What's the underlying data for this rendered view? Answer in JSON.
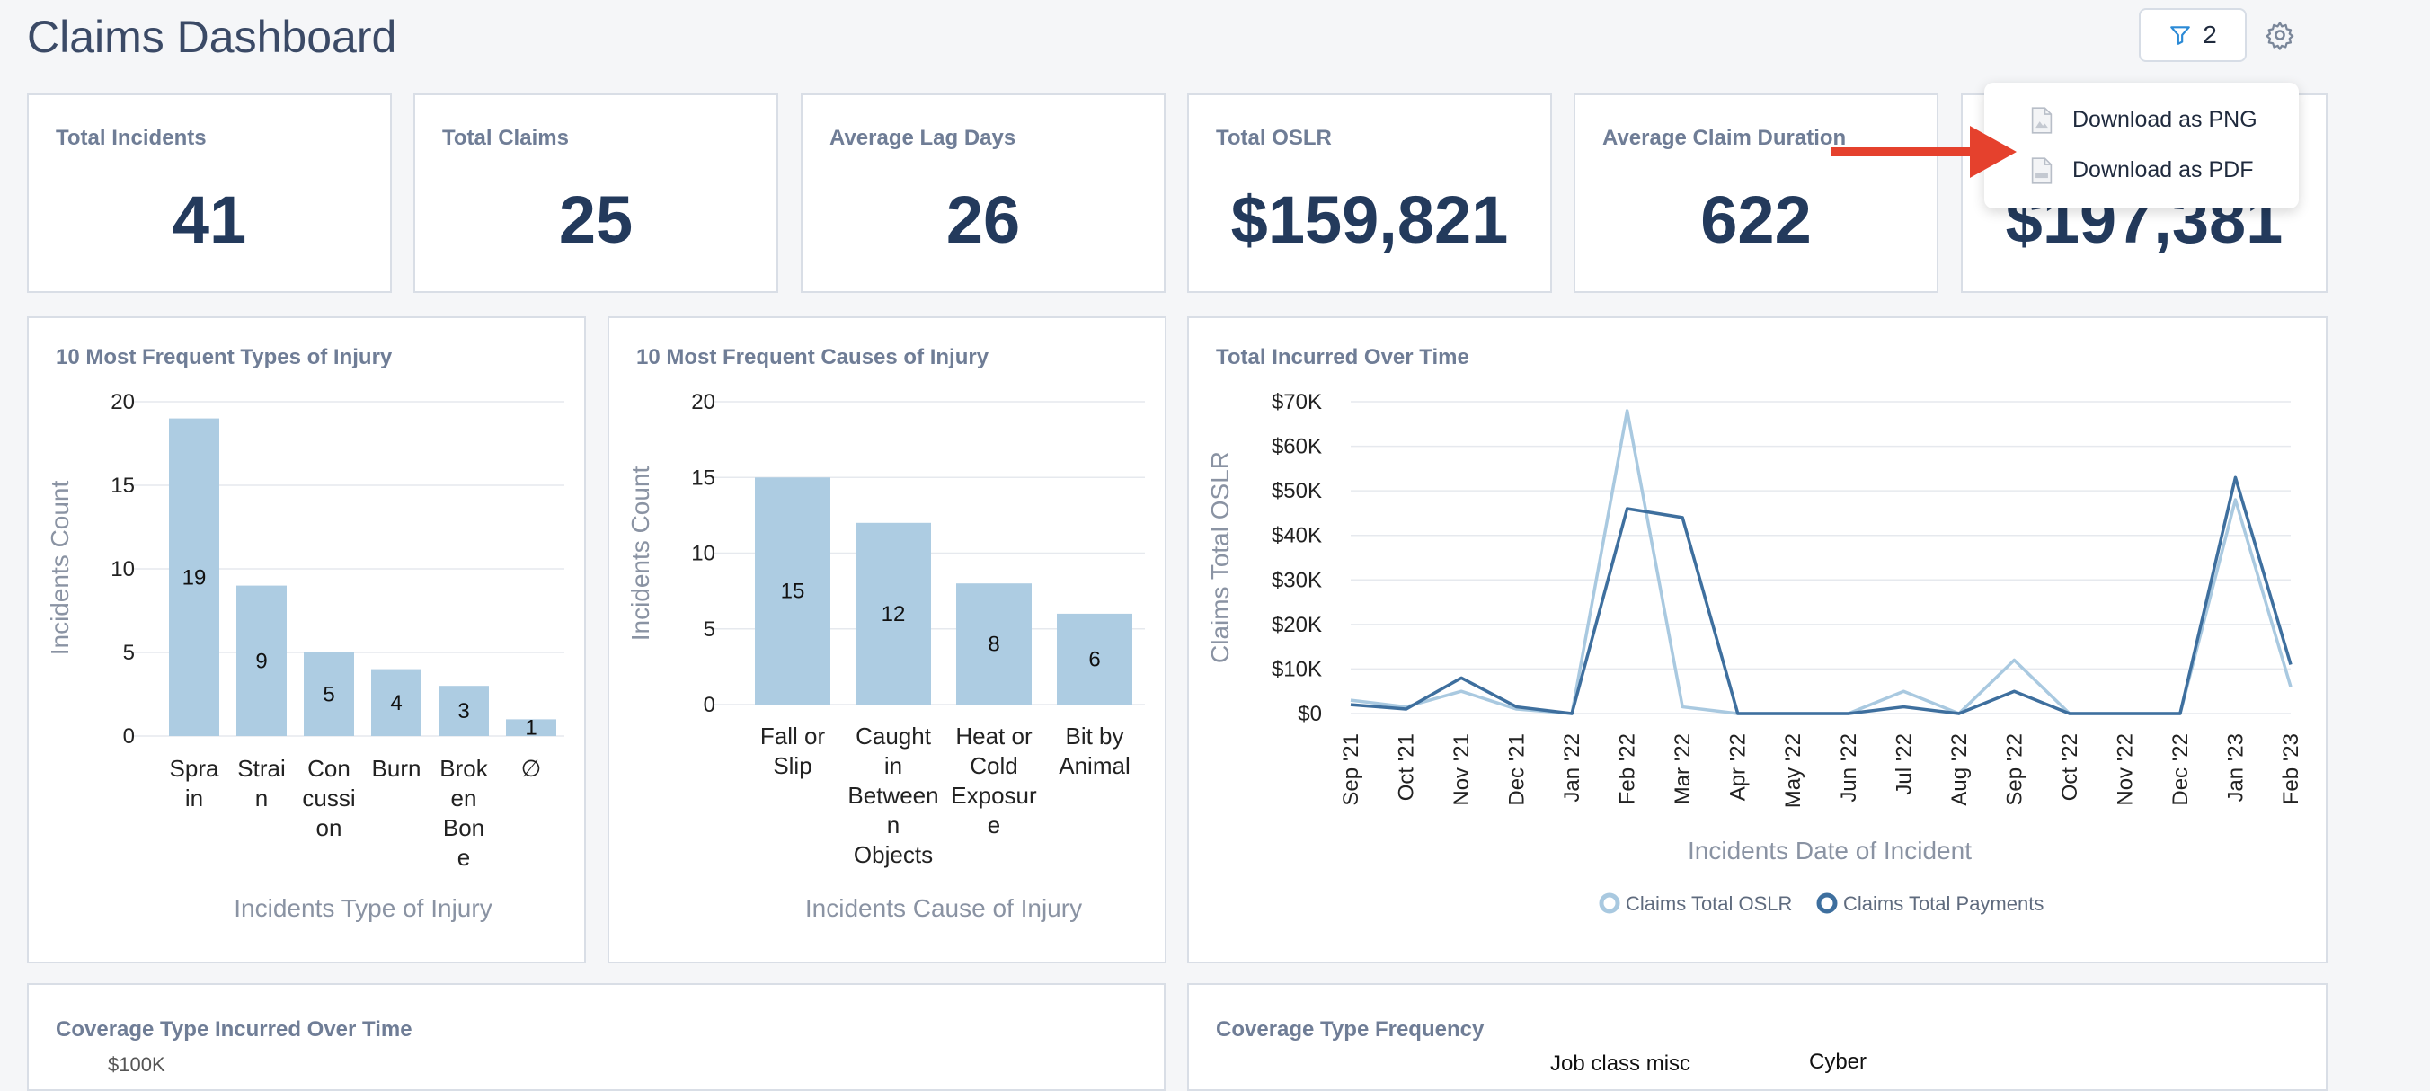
{
  "header": {
    "title": "Claims Dashboard",
    "filter_count": "2"
  },
  "kpis": [
    {
      "title": "Total Incidents",
      "value": "41"
    },
    {
      "title": "Total Claims",
      "value": "25"
    },
    {
      "title": "Average Lag Days",
      "value": "26"
    },
    {
      "title": "Total OSLR",
      "value": "$159,821"
    },
    {
      "title": "Average Claim Duration",
      "value": "622"
    },
    {
      "title": "",
      "value": "$197,381"
    }
  ],
  "download_menu": {
    "png_label": "Download as PNG",
    "pdf_label": "Download as PDF"
  },
  "colors": {
    "bar": "#adcce2",
    "oslr": "#a9c9e0",
    "payments": "#3e6f9e",
    "title": "#3b4a66",
    "arrow": "#e5412d"
  },
  "chart_data": [
    {
      "type": "bar",
      "title": "10 Most Frequent Types of Injury",
      "xlabel": "Incidents Type of Injury",
      "ylabel": "Incidents Count",
      "ylim": [
        0,
        20
      ],
      "yticks": [
        "0",
        "5",
        "10",
        "15",
        "20"
      ],
      "categories": [
        [
          "Spra",
          "in"
        ],
        [
          "Strai",
          "n"
        ],
        [
          "Con",
          "cussi",
          "on"
        ],
        [
          "Burn"
        ],
        [
          "Brok",
          "en",
          "Bon",
          "e"
        ],
        [
          "∅"
        ]
      ],
      "values": [
        19,
        9,
        5,
        4,
        3,
        1
      ]
    },
    {
      "type": "bar",
      "title": "10 Most Frequent Causes of Injury",
      "xlabel": "Incidents Cause of Injury",
      "ylabel": "Incidents Count",
      "ylim": [
        0,
        20
      ],
      "yticks": [
        "0",
        "5",
        "10",
        "15",
        "20"
      ],
      "categories": [
        [
          "Fall or",
          "Slip"
        ],
        [
          "Caught",
          "in",
          "Between",
          "n",
          "Objects"
        ],
        [
          "Heat or",
          "Cold",
          "Exposur",
          "e"
        ],
        [
          "Bit by",
          "Animal"
        ]
      ],
      "values": [
        15,
        12,
        8,
        6
      ]
    },
    {
      "type": "line",
      "title": "Total Incurred Over Time",
      "xlabel": "Incidents Date of Incident",
      "ylabel": "Claims Total OSLR",
      "ylim": [
        0,
        70000
      ],
      "yticks": [
        "$0",
        "$10K",
        "$20K",
        "$30K",
        "$40K",
        "$50K",
        "$60K",
        "$70K"
      ],
      "x": [
        "Sep '21",
        "Oct '21",
        "Nov '21",
        "Dec '21",
        "Jan '22",
        "Feb '22",
        "Mar '22",
        "Apr '22",
        "May '22",
        "Jun '22",
        "Jul '22",
        "Aug '22",
        "Sep '22",
        "Oct '22",
        "Nov '22",
        "Dec '22",
        "Jan '23",
        "Feb '23"
      ],
      "series": [
        {
          "name": "Claims Total OSLR",
          "values": [
            3000,
            1500,
            5000,
            1000,
            0,
            68000,
            1500,
            0,
            0,
            0,
            5000,
            0,
            12000,
            0,
            0,
            0,
            48000,
            6000
          ]
        },
        {
          "name": "Claims Total Payments",
          "values": [
            2000,
            1000,
            8000,
            1500,
            0,
            46000,
            44000,
            0,
            0,
            0,
            1500,
            0,
            5000,
            0,
            0,
            0,
            53000,
            11000
          ]
        }
      ],
      "legend": "bottom"
    }
  ],
  "bottom_panels": [
    {
      "title": "Coverage Type Incurred Over Time",
      "peek": "$100K"
    },
    {
      "title": "Coverage Type Frequency",
      "peek_a": "Job class misc",
      "peek_b": "Cyber"
    }
  ]
}
